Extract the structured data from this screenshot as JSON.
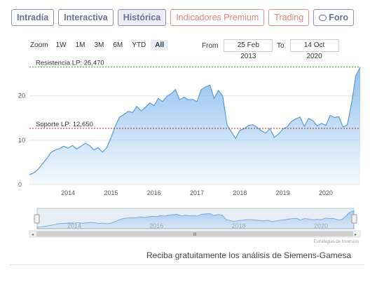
{
  "tabs": [
    {
      "label": "Intradía",
      "kind": "normal"
    },
    {
      "label": "Interactiva",
      "kind": "normal"
    },
    {
      "label": "Histórica",
      "kind": "active"
    },
    {
      "label": "Indicadores Premium",
      "kind": "premium"
    },
    {
      "label": "Trading",
      "kind": "premium"
    },
    {
      "label": "Foro",
      "kind": "forum"
    }
  ],
  "range_selector": {
    "zoom_label": "Zoom",
    "buttons": [
      "1W",
      "1M",
      "3M",
      "6M",
      "YTD",
      "All"
    ],
    "selected": "All",
    "from_label": "From",
    "from_value": "25 Feb 2013",
    "to_label": "To",
    "to_value": "14 Oct 2020"
  },
  "chart_data": {
    "type": "area",
    "title": "",
    "xlabel": "",
    "ylabel": "",
    "xlim": [
      2013.15,
      2020.85
    ],
    "ylim": [
      0,
      28
    ],
    "y_ticks": [
      0,
      10,
      20
    ],
    "x_ticks": [
      2014,
      2015,
      2016,
      2017,
      2018,
      2019,
      2020
    ],
    "fill_color": "#7cb5ec",
    "series": [
      {
        "x": [
          2013.15,
          2013.25,
          2013.35,
          2013.45,
          2013.55,
          2013.65,
          2013.75,
          2013.85,
          2013.95,
          2014.05,
          2014.15,
          2014.25,
          2014.35,
          2014.45,
          2014.55,
          2014.65,
          2014.75,
          2014.85,
          2014.95,
          2015.05,
          2015.15,
          2015.25,
          2015.35,
          2015.45,
          2015.55,
          2015.65,
          2015.75,
          2015.85,
          2015.95,
          2016.05,
          2016.15,
          2016.25,
          2016.35,
          2016.45,
          2016.55,
          2016.65,
          2016.75,
          2016.85,
          2016.95,
          2017.05,
          2017.15,
          2017.25,
          2017.35,
          2017.45,
          2017.55,
          2017.65,
          2017.75,
          2017.85,
          2017.95,
          2018.05,
          2018.15,
          2018.25,
          2018.35,
          2018.45,
          2018.55,
          2018.65,
          2018.75,
          2018.85,
          2018.95,
          2019.05,
          2019.15,
          2019.25,
          2019.35,
          2019.45,
          2019.55,
          2019.65,
          2019.75,
          2019.85,
          2019.95,
          2020.05,
          2020.15,
          2020.25,
          2020.35,
          2020.45,
          2020.55,
          2020.65,
          2020.75,
          2020.85
        ],
        "y": [
          2.2,
          2.6,
          3.4,
          4.6,
          5.8,
          7.2,
          7.8,
          8.1,
          8.6,
          8.2,
          8.8,
          8.0,
          8.6,
          9.3,
          8.8,
          7.8,
          8.3,
          7.3,
          8.3,
          10.6,
          13.2,
          15.2,
          15.8,
          16.5,
          16.2,
          17.6,
          16.6,
          17.4,
          18.4,
          17.8,
          19.4,
          18.7,
          19.9,
          20.5,
          21.4,
          19.1,
          19.7,
          19.1,
          19.2,
          18.7,
          21.4,
          22.0,
          22.4,
          19.4,
          21.2,
          20.0,
          13.4,
          11.9,
          10.4,
          12.2,
          12.6,
          13.3,
          13.5,
          12.9,
          12.1,
          11.6,
          12.6,
          10.6,
          11.4,
          12.5,
          13.0,
          14.2,
          14.8,
          15.2,
          13.1,
          14.9,
          14.4,
          13.2,
          13.8,
          13.3,
          15.6,
          15.1,
          15.3,
          13.0,
          13.4,
          18.4,
          24.6,
          26.47
        ]
      }
    ],
    "annotations": [
      {
        "label": "Resistencia LP: 26,470",
        "value": 26.47,
        "color": "#2e9e2e"
      },
      {
        "label": "Soporte LP: 12,650",
        "value": 12.65,
        "color": "#b03030"
      }
    ],
    "navigator_ticks": [
      2014,
      2016,
      2018,
      2020
    ],
    "credit": "Estrategias de Inversión"
  },
  "footer_text": "Reciba gratuitamente los análisis de Siemens-Gamesa"
}
